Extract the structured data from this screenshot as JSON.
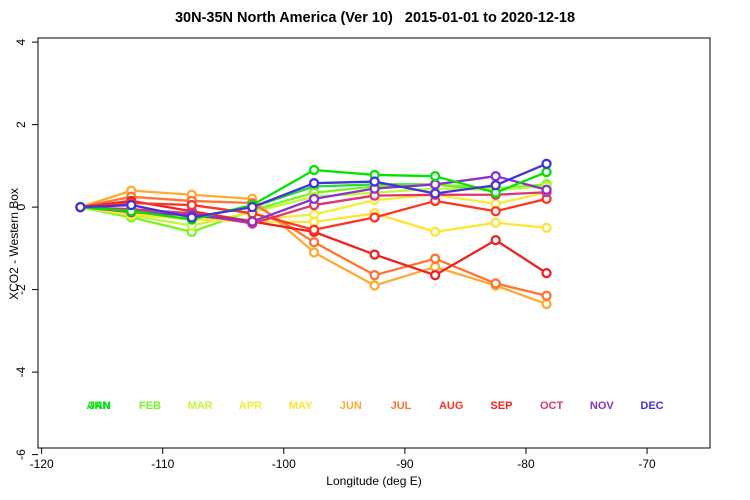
{
  "title": "30N-35N North America (Ver 10)   2015-01-01 to 2020-12-18",
  "chart_data": {
    "type": "line",
    "title": "30N-35N North America (Ver 10)   2015-01-01 to 2020-12-18",
    "xlabel": "Longitude (deg E)",
    "ylabel": "XCO2 - Western Box",
    "xlim": [
      -120.3,
      -64.8
    ],
    "ylim": [
      -5.84,
      4.1
    ],
    "xticks": [
      "-120",
      "-110",
      "-100",
      "-90",
      "-80",
      "-70"
    ],
    "xtick_values": [
      -120,
      -110,
      -100,
      -90,
      -80,
      -70
    ],
    "yticks": [
      "4",
      "2",
      "0",
      "-2",
      "-4",
      "-6"
    ],
    "ytick_values": [
      4,
      2,
      0,
      -2,
      -4,
      -6
    ],
    "grid": false,
    "marker": "open-circle",
    "line_width": 2.3,
    "marker_radius": 4,
    "legend_position": "bottom-inside",
    "legend_y": -4.9,
    "x": [
      -116.8,
      -112.6,
      -107.6,
      -102.6,
      -97.5,
      -92.5,
      -87.5,
      -82.5,
      -78.3
    ],
    "series": [
      {
        "name": "ANN",
        "legend_slot": 0,
        "color": "#22dd33",
        "values": [
          0,
          -0.08,
          -0.25,
          0.0,
          0.5,
          0.55,
          0.55,
          0.4,
          0.55
        ]
      },
      {
        "name": "FEB",
        "legend_slot": 1,
        "color": "#77f522",
        "values": [
          0,
          -0.25,
          -0.6,
          -0.08,
          0.35,
          0.5,
          0.55,
          0.45,
          0.55
        ]
      },
      {
        "name": "MAR",
        "legend_slot": 2,
        "color": "#c3f73a",
        "values": [
          0,
          -0.2,
          -0.45,
          -0.12,
          0.25,
          0.35,
          0.45,
          0.42,
          0.5
        ]
      },
      {
        "name": "APR",
        "legend_slot": 3,
        "color": "#f2ef3c",
        "values": [
          0,
          -0.15,
          -0.25,
          -0.3,
          -0.18,
          0.17,
          0.3,
          0.08,
          0.35
        ]
      },
      {
        "name": "MAY",
        "legend_slot": 4,
        "color": "#ffe433",
        "values": [
          0,
          -0.18,
          -0.3,
          -0.35,
          -0.36,
          -0.15,
          -0.6,
          -0.38,
          -0.5
        ]
      },
      {
        "name": "JUN",
        "legend_slot": 5,
        "color": "#ffab33",
        "values": [
          0,
          0.4,
          0.3,
          0.2,
          -1.1,
          -1.9,
          -1.45,
          -1.9,
          -2.35
        ]
      },
      {
        "name": "JUL",
        "legend_slot": 6,
        "color": "#ff7430",
        "values": [
          0,
          0.25,
          0.15,
          0.1,
          -0.85,
          -1.65,
          -1.25,
          -1.85,
          -2.15
        ]
      },
      {
        "name": "SEP",
        "legend_slot": 8,
        "color": "#ee2222",
        "values": [
          0,
          0.15,
          -0.1,
          -0.35,
          -0.6,
          -1.15,
          -1.65,
          -0.8,
          -1.6
        ]
      },
      {
        "name": "AUG",
        "legend_slot": 7,
        "color": "#ff3522",
        "values": [
          0,
          0.1,
          0.05,
          -0.15,
          -0.55,
          -0.25,
          0.15,
          -0.1,
          0.2
        ]
      },
      {
        "name": "OCT",
        "legend_slot": 9,
        "color": "#dd3377",
        "values": [
          0,
          -0.05,
          -0.15,
          -0.4,
          0.05,
          0.28,
          0.3,
          0.3,
          0.36
        ]
      },
      {
        "name": "NOV",
        "legend_slot": 10,
        "color": "#8833cc",
        "values": [
          0,
          -0.12,
          -0.2,
          -0.35,
          0.2,
          0.45,
          0.55,
          0.75,
          0.42
        ]
      },
      {
        "name": "JAN",
        "legend_slot": 0,
        "color": "#00e400",
        "values": [
          0,
          -0.1,
          -0.3,
          0.05,
          0.9,
          0.78,
          0.75,
          0.35,
          0.85
        ]
      },
      {
        "name": "DEC",
        "legend_slot": 11,
        "color": "#4433dd",
        "values": [
          0,
          0.05,
          -0.25,
          0.0,
          0.58,
          0.62,
          0.33,
          0.53,
          1.05
        ]
      }
    ]
  }
}
